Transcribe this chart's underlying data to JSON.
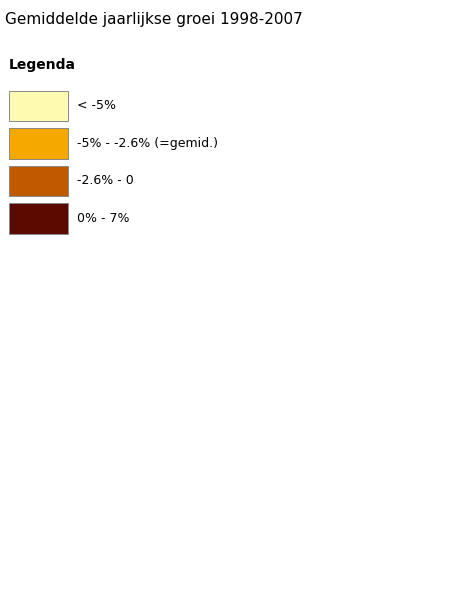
{
  "title": "Gemiddelde jaarlijkse groei 1998-2007",
  "legend_title": "Legenda",
  "legend_items": [
    {
      "label": "< -5%",
      "color": "#FEFBB0"
    },
    {
      "label": "-5% - -2.6% (=gemid.)",
      "color": "#F5A800"
    },
    {
      "label": "-2.6% - 0",
      "color": "#C05A00"
    },
    {
      "label": "0% - 7%",
      "color": "#5C0A00"
    }
  ],
  "colors": {
    "light_yellow": "#FEFBB0",
    "orange": "#F5A800",
    "dark_orange": "#C05A00",
    "dark_red": "#5C0A00",
    "border": "#5080A0",
    "background": "#FFFFFF"
  },
  "figsize": [
    4.63,
    5.93
  ],
  "dpi": 100,
  "title_fontsize": 11,
  "legend_fontsize": 9
}
